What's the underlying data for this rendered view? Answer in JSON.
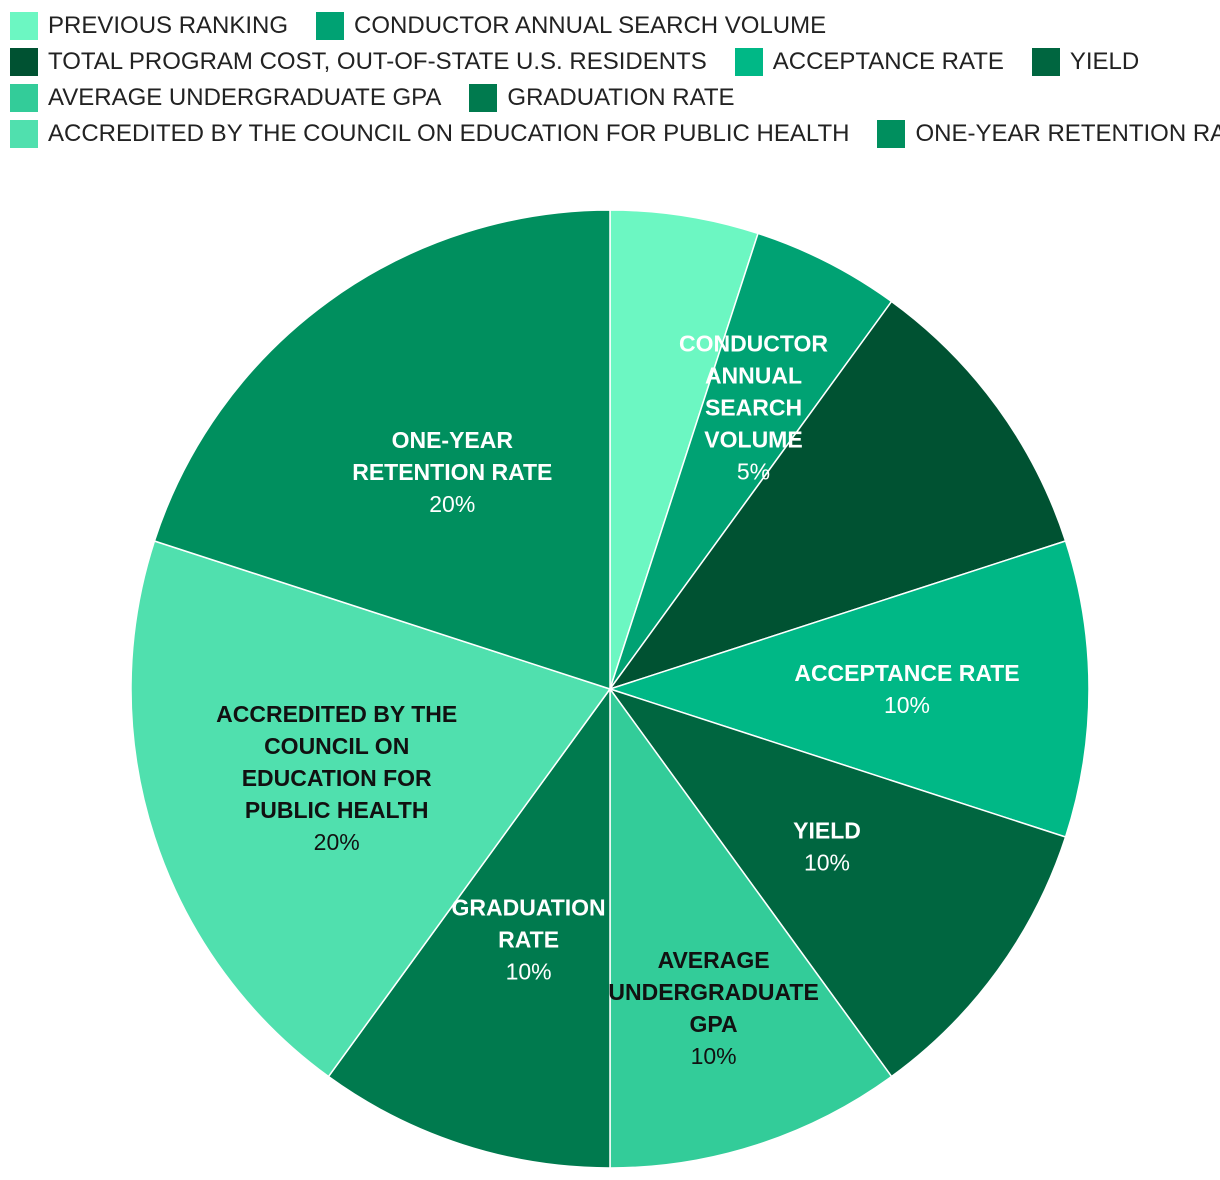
{
  "chart_data": {
    "type": "pie",
    "title": "",
    "unit": "%",
    "slices": [
      {
        "label": "PREVIOUS RANKING",
        "value": 5,
        "color": "#6CF7C2",
        "label_lines": [],
        "value_text": "",
        "text_color": "#FFFFFF"
      },
      {
        "label": "CONDUCTOR ANNUAL SEARCH VOLUME",
        "value": 5,
        "color": "#00A273",
        "label_lines": [
          "CONDUCTOR",
          "ANNUAL",
          "SEARCH",
          "VOLUME"
        ],
        "value_text": "5%",
        "text_color": "#FFFFFF"
      },
      {
        "label": "TOTAL PROGRAM COST, OUT-OF-STATE U.S. RESIDENTS",
        "value": 10,
        "color": "#005232",
        "label_lines": [],
        "value_text": "",
        "text_color": "#FFFFFF"
      },
      {
        "label": "ACCEPTANCE RATE",
        "value": 10,
        "color": "#00B886",
        "label_lines": [
          "ACCEPTANCE RATE"
        ],
        "value_text": "10%",
        "text_color": "#FFFFFF"
      },
      {
        "label": "YIELD",
        "value": 10,
        "color": "#006640",
        "label_lines": [
          "YIELD"
        ],
        "value_text": "10%",
        "text_color": "#FFFFFF"
      },
      {
        "label": "AVERAGE UNDERGRADUATE GPA",
        "value": 10,
        "color": "#33CC99",
        "label_lines": [
          "AVERAGE",
          "UNDERGRADUATE",
          "GPA"
        ],
        "value_text": "10%",
        "text_color": "#111111"
      },
      {
        "label": "GRADUATION RATE",
        "value": 10,
        "color": "#007A4E",
        "label_lines": [
          "GRADUATION",
          "RATE"
        ],
        "value_text": "10%",
        "text_color": "#FFFFFF"
      },
      {
        "label": "ACCREDITED BY THE COUNCIL ON EDUCATION FOR PUBLIC HEALTH",
        "value": 20,
        "color": "#50E0AE",
        "label_lines": [
          "ACCREDITED BY THE",
          "COUNCIL ON",
          "EDUCATION FOR",
          "PUBLIC HEALTH"
        ],
        "value_text": "20%",
        "text_color": "#111111"
      },
      {
        "label": "ONE-YEAR RETENTION RATE",
        "value": 20,
        "color": "#008F5E",
        "label_lines": [
          "ONE-YEAR",
          "RETENTION RATE"
        ],
        "value_text": "20%",
        "text_color": "#FFFFFF"
      }
    ],
    "legend": {
      "position": "top",
      "rows": [
        [
          "PREVIOUS RANKING",
          "CONDUCTOR ANNUAL SEARCH VOLUME"
        ],
        [
          "TOTAL PROGRAM COST, OUT-OF-STATE U.S. RESIDENTS",
          "ACCEPTANCE RATE",
          "YIELD"
        ],
        [
          "AVERAGE UNDERGRADUATE GPA",
          "GRADUATION RATE"
        ],
        [
          "ACCREDITED BY THE COUNCIL ON EDUCATION FOR PUBLIC HEALTH",
          "ONE-YEAR RETENTION RATE"
        ]
      ]
    }
  }
}
